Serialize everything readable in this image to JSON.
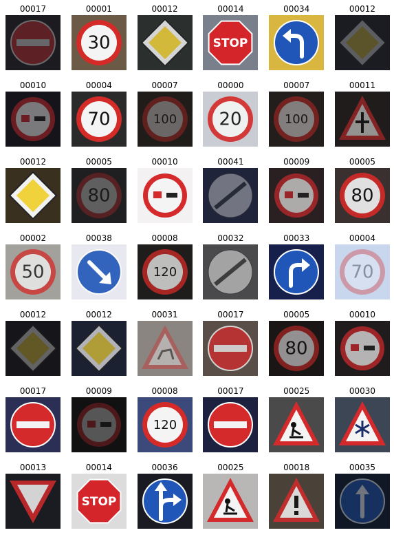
{
  "figure": {
    "cells": [
      {
        "label": "00017",
        "sign": "no-entry",
        "bg": "#1c1c20",
        "dim": 0.35
      },
      {
        "label": "00001",
        "sign": "limit",
        "text": "30",
        "bg": "#6b5a46",
        "dim": 1.0
      },
      {
        "label": "00012",
        "sign": "priority",
        "bg": "#2b2f2e",
        "dim": 0.85
      },
      {
        "label": "00014",
        "sign": "stop",
        "text": "STOP",
        "bg": "#7a7f8c",
        "dim": 1.0
      },
      {
        "label": "00034",
        "sign": "turn-left",
        "bg": "#d9b640",
        "dim": 1.0
      },
      {
        "label": "00012",
        "sign": "priority",
        "bg": "#1a1c22",
        "dim": 0.3
      },
      {
        "label": "00010",
        "sign": "no-overtake-truck",
        "bg": "#15141a",
        "dim": 0.45
      },
      {
        "label": "00004",
        "sign": "limit",
        "text": "70",
        "bg": "#2a2a2a",
        "dim": 1.0
      },
      {
        "label": "00007",
        "sign": "limit",
        "text": "100",
        "bg": "#201c1a",
        "dim": 0.35
      },
      {
        "label": "00000",
        "sign": "limit",
        "text": "20",
        "bg": "#c9ccd2",
        "dim": 0.9
      },
      {
        "label": "00007",
        "sign": "limit",
        "text": "100",
        "bg": "#231d1b",
        "dim": 0.45
      },
      {
        "label": "00011",
        "sign": "warning-cross",
        "bg": "#211c1c",
        "dim": 0.55
      },
      {
        "label": "00012",
        "sign": "priority",
        "bg": "#3a3020",
        "dim": 1.0
      },
      {
        "label": "00005",
        "sign": "limit",
        "text": "80",
        "bg": "#1f1e20",
        "dim": 0.3
      },
      {
        "label": "00010",
        "sign": "no-overtake-truck",
        "bg": "#f4f1f3",
        "dim": 1.0
      },
      {
        "label": "00041",
        "sign": "end-no-overtake",
        "bg": "#20243a",
        "dim": 0.4
      },
      {
        "label": "00009",
        "sign": "no-overtake",
        "bg": "#2a2022",
        "dim": 0.65
      },
      {
        "label": "00005",
        "sign": "limit",
        "text": "80",
        "bg": "#3a3030",
        "dim": 0.9
      },
      {
        "label": "00002",
        "sign": "limit",
        "text": "50",
        "bg": "#a3a19c",
        "dim": 0.75
      },
      {
        "label": "00038",
        "sign": "keep-right",
        "bg": "#e8e9f0",
        "dim": 0.9
      },
      {
        "label": "00008",
        "sign": "limit",
        "text": "120",
        "bg": "#1f1d1b",
        "dim": 0.75
      },
      {
        "label": "00032",
        "sign": "end-limits",
        "bg": "#4a4a4c",
        "dim": 0.55
      },
      {
        "label": "00033",
        "sign": "turn-right",
        "bg": "#17204a",
        "dim": 1.0
      },
      {
        "label": "00004",
        "sign": "limit",
        "text": "70",
        "bg": "#c8d6ee",
        "dim": 0.35
      },
      {
        "label": "00012",
        "sign": "priority",
        "bg": "#16161a",
        "dim": 0.35
      },
      {
        "label": "00012",
        "sign": "priority",
        "bg": "#1b2130",
        "dim": 0.7
      },
      {
        "label": "00031",
        "sign": "warning-animal",
        "bg": "#8a8580",
        "dim": 0.4
      },
      {
        "label": "00017",
        "sign": "no-entry",
        "bg": "#5a4f48",
        "dim": 0.75
      },
      {
        "label": "00005",
        "sign": "limit",
        "text": "80",
        "bg": "#1a1616",
        "dim": 0.55
      },
      {
        "label": "00010",
        "sign": "no-overtake-truck",
        "bg": "#201c1e",
        "dim": 0.7
      },
      {
        "label": "00017",
        "sign": "no-entry",
        "bg": "#2c2f55",
        "dim": 1.0
      },
      {
        "label": "00009",
        "sign": "no-overtake",
        "bg": "#111111",
        "dim": 0.3
      },
      {
        "label": "00008",
        "sign": "limit",
        "text": "120",
        "bg": "#3b4a7a",
        "dim": 1.0
      },
      {
        "label": "00017",
        "sign": "no-entry",
        "bg": "#1d2140",
        "dim": 1.0
      },
      {
        "label": "00025",
        "sign": "warning-roadwork",
        "bg": "#4a4a4a",
        "dim": 1.0
      },
      {
        "label": "00030",
        "sign": "warning-snow",
        "bg": "#3d4655",
        "dim": 1.0
      },
      {
        "label": "00013",
        "sign": "yield",
        "bg": "#1b1c22",
        "dim": 0.85
      },
      {
        "label": "00014",
        "sign": "stop",
        "text": "STOP",
        "bg": "#dcdcdc",
        "dim": 1.0
      },
      {
        "label": "00036",
        "sign": "straight-right",
        "bg": "#1a1a22",
        "dim": 1.0
      },
      {
        "label": "00025",
        "sign": "warning-roadwork",
        "bg": "#b9b7b6",
        "dim": 1.0
      },
      {
        "label": "00018",
        "sign": "warning-general",
        "bg": "#4a4238",
        "dim": 0.85
      },
      {
        "label": "00035",
        "sign": "ahead-only",
        "bg": "#101826",
        "dim": 0.4
      }
    ]
  }
}
